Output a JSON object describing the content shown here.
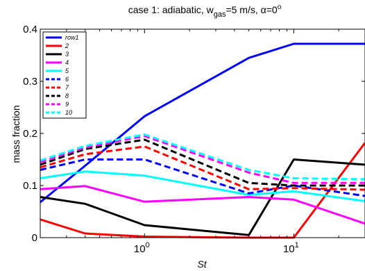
{
  "chart_data": {
    "type": "line",
    "title": {
      "prefix": "case 1: adiabatic, w",
      "sub": "gas",
      "middle": "=5 m/s, α=0",
      "sup": "o"
    },
    "xlabel": "St",
    "ylabel": "mass fraction",
    "xscale": "log",
    "xlim": [
      0.2,
      30
    ],
    "ylim": [
      0,
      0.4
    ],
    "xticks": [
      {
        "value": 1,
        "base": "10",
        "exp": "0"
      },
      {
        "value": 10,
        "base": "10",
        "exp": "1"
      }
    ],
    "yticks": [
      {
        "value": 0,
        "label": "0"
      },
      {
        "value": 0.1,
        "label": "0.1"
      },
      {
        "value": 0.2,
        "label": "0.2"
      },
      {
        "value": 0.3,
        "label": "0.3"
      },
      {
        "value": 0.4,
        "label": "0.4"
      }
    ],
    "grid": false,
    "legend_position": "top-left",
    "x": [
      0.2,
      0.4,
      1,
      5,
      10,
      30
    ],
    "series": [
      {
        "name": "row1",
        "color": "#0000ff",
        "dash": "solid",
        "values": [
          0.068,
          0.138,
          0.233,
          0.345,
          0.372,
          0.372
        ]
      },
      {
        "name": "2",
        "color": "#ff0000",
        "dash": "solid",
        "values": [
          0.035,
          0.008,
          0.002,
          0.0,
          0.0,
          0.182
        ]
      },
      {
        "name": "3",
        "color": "#000000",
        "dash": "solid",
        "values": [
          0.078,
          0.065,
          0.024,
          0.005,
          0.15,
          0.14
        ]
      },
      {
        "name": "4",
        "color": "#ff00ff",
        "dash": "solid",
        "values": [
          0.093,
          0.099,
          0.069,
          0.078,
          0.073,
          0.027
        ]
      },
      {
        "name": "5",
        "color": "#00ffff",
        "dash": "solid",
        "values": [
          0.114,
          0.127,
          0.119,
          0.082,
          0.089,
          0.07
        ]
      },
      {
        "name": "6",
        "color": "#0000ff",
        "dash": "dashed",
        "values": [
          0.13,
          0.15,
          0.15,
          0.085,
          0.1,
          0.08
        ]
      },
      {
        "name": "7",
        "color": "#ff0000",
        "dash": "dashed",
        "values": [
          0.135,
          0.16,
          0.175,
          0.093,
          0.095,
          0.092
        ]
      },
      {
        "name": "8",
        "color": "#000000",
        "dash": "dashed",
        "values": [
          0.14,
          0.17,
          0.188,
          0.105,
          0.1,
          0.1
        ]
      },
      {
        "name": "9",
        "color": "#ff00ff",
        "dash": "dashed",
        "values": [
          0.145,
          0.173,
          0.195,
          0.125,
          0.105,
          0.105
        ]
      },
      {
        "name": "10",
        "color": "#00ffff",
        "dash": "dashed",
        "values": [
          0.148,
          0.176,
          0.198,
          0.13,
          0.114,
          0.112
        ]
      }
    ]
  }
}
